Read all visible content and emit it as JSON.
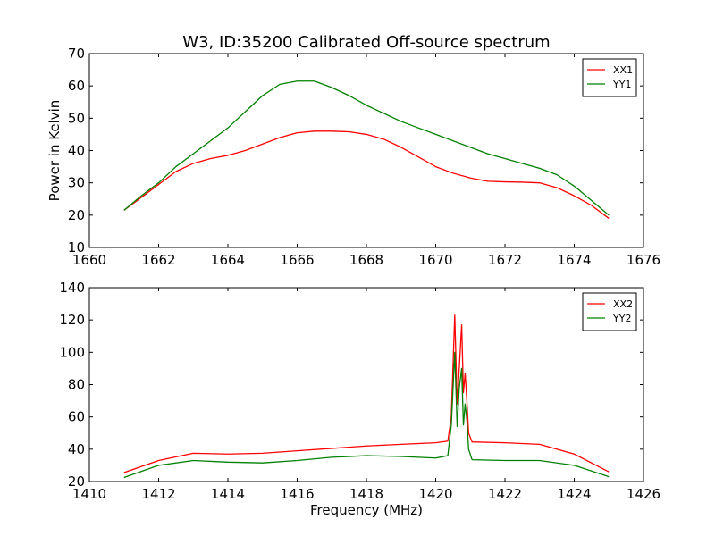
{
  "figure_title": "W3, ID:35200 Calibrated Off-source spectrum",
  "chart_data": [
    {
      "type": "line",
      "title": "",
      "xlabel": "",
      "ylabel": "Power in Kelvin",
      "xlim": [
        1660,
        1676
      ],
      "ylim": [
        10,
        70
      ],
      "xticks": [
        "1660",
        "1662",
        "1664",
        "1666",
        "1668",
        "1670",
        "1672",
        "1674",
        "1676"
      ],
      "yticks": [
        "10",
        "20",
        "30",
        "40",
        "50",
        "60",
        "70"
      ],
      "grid": false,
      "legend": "top-right",
      "series": [
        {
          "name": "XX1",
          "color": "#ff0000",
          "x": [
            1661,
            1661.5,
            1662,
            1662.5,
            1663,
            1663.5,
            1664,
            1664.5,
            1665,
            1665.5,
            1666,
            1666.5,
            1667,
            1667.5,
            1668,
            1668.5,
            1669,
            1669.5,
            1670,
            1670.5,
            1671,
            1671.5,
            1672,
            1672.5,
            1673,
            1673.5,
            1674,
            1674.5,
            1675
          ],
          "y": [
            21.5,
            25.5,
            29.5,
            33.5,
            36,
            37.5,
            38.5,
            40,
            42,
            44,
            45.5,
            46,
            46,
            45.8,
            45,
            43.5,
            41,
            38,
            35,
            33,
            31.5,
            30.5,
            30.3,
            30.2,
            30,
            28.5,
            26,
            23,
            19
          ]
        },
        {
          "name": "YY1",
          "color": "#008000",
          "x": [
            1661,
            1661.5,
            1662,
            1662.5,
            1663,
            1663.5,
            1664,
            1664.5,
            1665,
            1665.5,
            1666,
            1666.5,
            1667,
            1667.5,
            1668,
            1668.5,
            1669,
            1669.5,
            1670,
            1670.5,
            1671,
            1671.5,
            1672,
            1672.5,
            1673,
            1673.5,
            1674,
            1674.5,
            1675
          ],
          "y": [
            21.5,
            26,
            30,
            35,
            39,
            43,
            47,
            52,
            57,
            60.5,
            61.5,
            61.5,
            59.5,
            57,
            54,
            51.5,
            49,
            47,
            45,
            43,
            41,
            39,
            37.5,
            36,
            34.5,
            32.5,
            29,
            24.5,
            20
          ]
        }
      ]
    },
    {
      "type": "line",
      "title": "",
      "xlabel": "Frequency (MHz)",
      "ylabel": "",
      "xlim": [
        1410,
        1426
      ],
      "ylim": [
        20,
        140
      ],
      "xticks": [
        "1410",
        "1412",
        "1414",
        "1416",
        "1418",
        "1420",
        "1422",
        "1424",
        "1426"
      ],
      "yticks": [
        "20",
        "40",
        "60",
        "80",
        "100",
        "120",
        "140"
      ],
      "grid": false,
      "legend": "top-right",
      "series": [
        {
          "name": "XX2",
          "color": "#ff0000",
          "x": [
            1411,
            1412,
            1413,
            1414,
            1415,
            1416,
            1417,
            1418,
            1419,
            1420,
            1420.35,
            1420.45,
            1420.55,
            1420.62,
            1420.68,
            1420.75,
            1420.8,
            1420.85,
            1420.9,
            1420.95,
            1421.05,
            1422,
            1423,
            1424,
            1425
          ],
          "y": [
            25.5,
            33,
            37.5,
            37,
            37.5,
            39,
            40.5,
            42,
            43,
            44,
            45,
            60,
            123,
            68,
            90,
            117,
            75,
            87,
            70,
            50,
            44.5,
            44,
            43,
            37,
            26
          ]
        },
        {
          "name": "YY2",
          "color": "#008000",
          "x": [
            1411,
            1412,
            1413,
            1414,
            1415,
            1416,
            1417,
            1418,
            1419,
            1420,
            1420.35,
            1420.45,
            1420.55,
            1420.62,
            1420.68,
            1420.75,
            1420.8,
            1420.85,
            1420.9,
            1420.95,
            1421.05,
            1422,
            1423,
            1424,
            1425
          ],
          "y": [
            22.5,
            30,
            33,
            32,
            31.5,
            33,
            35,
            36,
            35.5,
            34.5,
            36,
            55,
            100,
            54,
            78,
            90,
            55,
            68,
            58,
            40,
            33.5,
            33,
            33,
            30,
            23
          ]
        }
      ]
    }
  ]
}
